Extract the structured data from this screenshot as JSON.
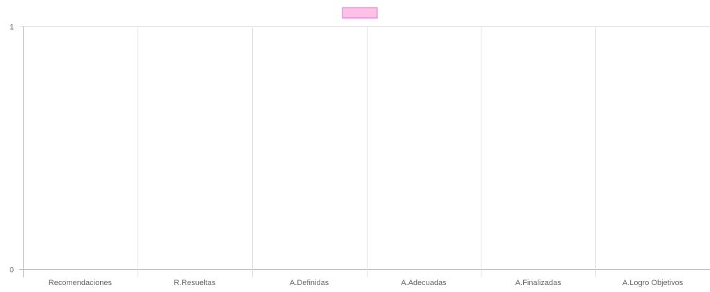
{
  "chart_data": {
    "type": "bar",
    "title": "",
    "xlabel": "",
    "ylabel": "",
    "categories": [
      "Recomendaciones",
      "R.Resueltas",
      "A.Definidas",
      "A.Adecuadas",
      "A.Finalizadas",
      "A.Logro Objetivos"
    ],
    "series": [
      {
        "color": "#ffc0e6",
        "border": "#e26ad6",
        "values": [
          0,
          0,
          0,
          0,
          0,
          0
        ]
      }
    ],
    "ylim": [
      0,
      1
    ],
    "yticks": [
      0,
      1
    ],
    "grid": true,
    "legend_position": "top-center"
  }
}
